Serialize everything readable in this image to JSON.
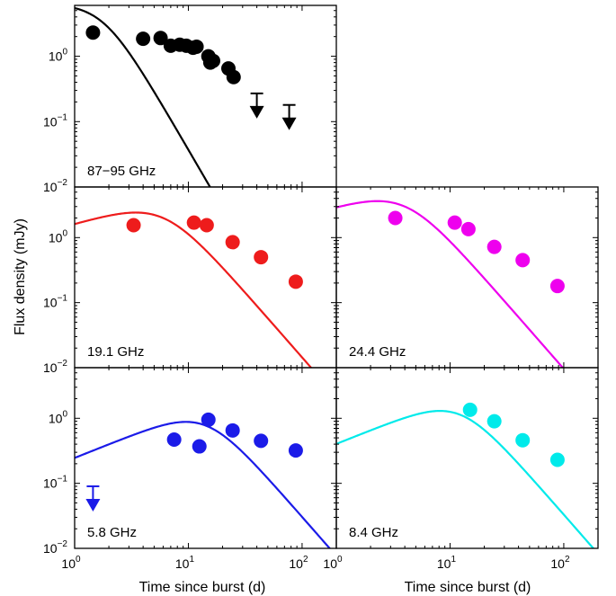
{
  "figure": {
    "ylabel": "Flux density  (mJy)",
    "xlabel": "Time since burst  (d)"
  },
  "chart_data": [
    {
      "type": "scatter",
      "label": "87−95 GHz",
      "xscale": "log",
      "yscale": "log",
      "xlim": [
        1,
        200
      ],
      "ylim": [
        0.01,
        6
      ],
      "color": "#000000",
      "points": [
        [
          1.45,
          2.3
        ],
        [
          4.0,
          1.85
        ],
        [
          5.7,
          1.9
        ],
        [
          7.0,
          1.45
        ],
        [
          8.4,
          1.5
        ],
        [
          9.6,
          1.45
        ],
        [
          11.0,
          1.35
        ],
        [
          11.8,
          1.4
        ],
        [
          15.0,
          1.0
        ],
        [
          15.6,
          0.8
        ],
        [
          16.5,
          0.85
        ],
        [
          22.5,
          0.65
        ],
        [
          25.0,
          0.48
        ]
      ],
      "upper_limits": [
        [
          40.0,
          0.27
        ],
        [
          77.0,
          0.18
        ]
      ],
      "model": {
        "peak_flux": 3.2,
        "peak_time": 1.8,
        "rise": 0.0,
        "decay": 3.0,
        "smoothness": 1.0
      }
    },
    {
      "type": "scatter",
      "label": "19.1 GHz",
      "xscale": "log",
      "yscale": "log",
      "xlim": [
        1,
        200
      ],
      "ylim": [
        0.01,
        6
      ],
      "color": "#ee1c1c",
      "points": [
        [
          3.3,
          1.55
        ],
        [
          11.2,
          1.7
        ],
        [
          14.5,
          1.55
        ],
        [
          24.5,
          0.85
        ],
        [
          43.5,
          0.5
        ],
        [
          88.0,
          0.21
        ]
      ],
      "upper_limits": [],
      "model": {
        "peak_flux": 2.0,
        "peak_time": 6.0,
        "rise": 0.5,
        "decay": 2.0,
        "smoothness": 1.0
      }
    },
    {
      "type": "scatter",
      "label": "24.4 GHz",
      "xscale": "log",
      "yscale": "log",
      "xlim": [
        1,
        200
      ],
      "ylim": [
        0.01,
        6
      ],
      "color": "#ee00ee",
      "points": [
        [
          3.3,
          2.0
        ],
        [
          11.0,
          1.7
        ],
        [
          14.5,
          1.35
        ],
        [
          24.5,
          0.72
        ],
        [
          43.5,
          0.45
        ],
        [
          88.0,
          0.18
        ]
      ],
      "upper_limits": [],
      "model": {
        "peak_flux": 3.0,
        "peak_time": 4.0,
        "rise": 0.5,
        "decay": 2.0,
        "smoothness": 1.0
      }
    },
    {
      "type": "scatter",
      "label": "5.8 GHz",
      "xscale": "log",
      "yscale": "log",
      "xlim": [
        1,
        200
      ],
      "ylim": [
        0.01,
        6
      ],
      "color": "#1b1be8",
      "points": [
        [
          7.5,
          0.47
        ],
        [
          12.5,
          0.37
        ],
        [
          15.0,
          0.95
        ],
        [
          24.5,
          0.65
        ],
        [
          43.5,
          0.45
        ],
        [
          88.0,
          0.32
        ]
      ],
      "upper_limits": [
        [
          1.45,
          0.09
        ]
      ],
      "model": {
        "peak_flux": 0.78,
        "peak_time": 14.0,
        "rise": 0.7,
        "decay": 2.0,
        "smoothness": 1.0
      }
    },
    {
      "type": "scatter",
      "label": "8.4 GHz",
      "xscale": "log",
      "yscale": "log",
      "xlim": [
        1,
        200
      ],
      "ylim": [
        0.01,
        6
      ],
      "color": "#00eaea",
      "points": [
        [
          15.0,
          1.35
        ],
        [
          24.5,
          0.9
        ],
        [
          43.5,
          0.46
        ],
        [
          88.0,
          0.23
        ]
      ],
      "upper_limits": [],
      "model": {
        "peak_flux": 1.15,
        "peak_time": 12.0,
        "rise": 0.7,
        "decay": 2.0,
        "smoothness": 1.0
      }
    }
  ]
}
